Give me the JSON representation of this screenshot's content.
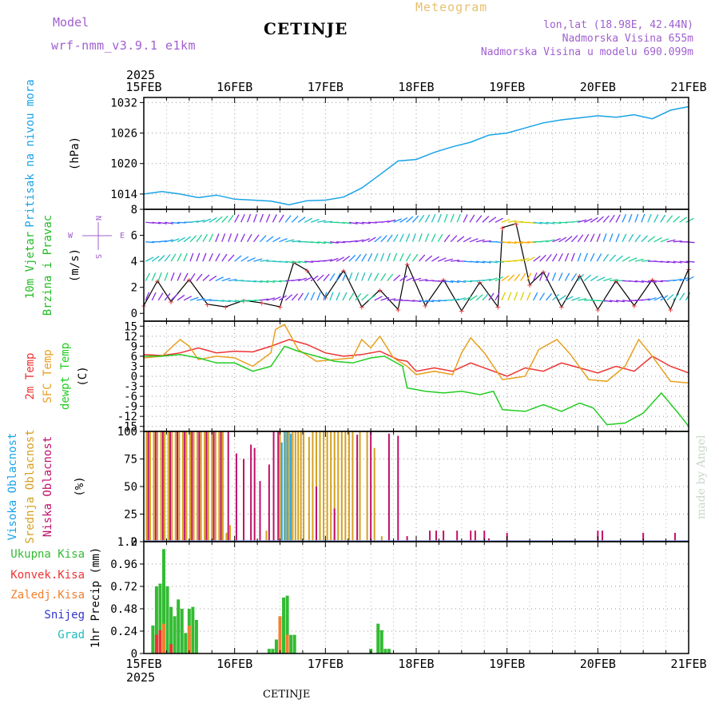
{
  "header": {
    "model_label": "Model",
    "model_name": "wrf-nmm_v3.9.1 e1km",
    "station": "CETINJE",
    "meteogram": "Meteogram",
    "lonlat": "lon,lat (18.98E, 42.44N)",
    "altitude": "Nadmorska Visina 655m",
    "model_altitude": "Nadmorska Visina u modelu 690.099m"
  },
  "footer": {
    "station": "CETINJE",
    "made_by": "made by Angel"
  },
  "colors": {
    "pressure": "#1aa3e6",
    "wind_label": "#22bb22",
    "temp2m": "#ee3333",
    "sfc_temp": "#e8a020",
    "dewpoint": "#22cc22",
    "cloud_high": "#1aa3e6",
    "cloud_mid": "#d4a020",
    "cloud_low": "#c0106a",
    "precip_total": "#33bb33",
    "precip_conv": "#ee3333",
    "precip_frozen": "#f08030",
    "snow": "#3333cc",
    "hail": "#22bbbb",
    "axis_label": "#000000",
    "model_text": "#a05fd0"
  },
  "chart_data": [
    {
      "type": "line",
      "title": "Pritisak na nivou mora",
      "ylabel": "(hPa)",
      "ylim": [
        1011,
        1033
      ],
      "yticks": [
        "1014",
        "1020",
        "1026",
        "1032"
      ],
      "x_top_ticks": [
        "15FEB",
        "16FEB",
        "17FEB",
        "18FEB",
        "19FEB",
        "20FEB",
        "21FEB"
      ],
      "x_top_year": "2025",
      "x_day_range": [
        15,
        21
      ],
      "grid": true,
      "series": [
        {
          "name": "Pritisak na nivou mora",
          "x": [
            15.0,
            15.2,
            15.4,
            15.6,
            15.8,
            16.0,
            16.2,
            16.4,
            16.6,
            16.8,
            17.0,
            17.2,
            17.4,
            17.6,
            17.8,
            18.0,
            18.2,
            18.4,
            18.6,
            18.8,
            19.0,
            19.2,
            19.4,
            19.6,
            19.8,
            20.0,
            20.2,
            20.4,
            20.6,
            20.8,
            21.0
          ],
          "values": [
            1014.0,
            1014.5,
            1014.0,
            1013.3,
            1013.8,
            1013.0,
            1012.8,
            1012.6,
            1011.9,
            1012.7,
            1012.8,
            1013.4,
            1015.2,
            1017.8,
            1020.5,
            1020.8,
            1022.2,
            1023.3,
            1024.2,
            1025.6,
            1026.0,
            1027.0,
            1028.0,
            1028.6,
            1029.0,
            1029.4,
            1029.1,
            1029.6,
            1028.8,
            1030.5,
            1031.2
          ]
        }
      ]
    },
    {
      "type": "line",
      "title": "10m Vjetar Brzina i Pravac",
      "ylabel": "(m/s)",
      "ylim": [
        -0.6,
        8
      ],
      "yticks": [
        "0",
        "2",
        "4",
        "6",
        "8"
      ],
      "compass": {
        "north": "N",
        "south": "S",
        "east": "E",
        "west": "W"
      },
      "grid": false,
      "series": [
        {
          "name": "wind speed",
          "x": [
            15.0,
            15.15,
            15.3,
            15.5,
            15.7,
            15.9,
            16.1,
            16.3,
            16.5,
            16.65,
            16.8,
            17.0,
            17.2,
            17.4,
            17.6,
            17.8,
            17.9,
            18.1,
            18.3,
            18.5,
            18.7,
            18.9,
            18.95,
            19.1,
            19.25,
            19.4,
            19.6,
            19.8,
            20.0,
            20.2,
            20.4,
            20.6,
            20.8,
            21.0
          ],
          "values": [
            0.6,
            2.5,
            0.9,
            2.6,
            0.7,
            0.5,
            1.0,
            0.8,
            0.5,
            3.9,
            3.3,
            1.2,
            3.3,
            0.5,
            1.8,
            0.3,
            3.8,
            0.6,
            2.6,
            0.2,
            2.4,
            0.5,
            6.6,
            6.9,
            2.2,
            3.2,
            0.5,
            2.9,
            0.3,
            2.5,
            0.6,
            2.6,
            0.3,
            3.4
          ]
        }
      ]
    },
    {
      "type": "line",
      "ylabel": "(C)",
      "ylim": [
        -16.5,
        16.5
      ],
      "yticks": [
        "15",
        "12",
        "9",
        "6",
        "3",
        "0",
        "-3",
        "-6",
        "-9",
        "-12",
        "-15"
      ],
      "grid": true,
      "series": [
        {
          "name": "2m Temp",
          "x": [
            15.0,
            15.2,
            15.4,
            15.6,
            15.8,
            16.0,
            16.2,
            16.4,
            16.6,
            16.8,
            17.0,
            17.2,
            17.4,
            17.6,
            17.8,
            17.9,
            18.0,
            18.2,
            18.4,
            18.6,
            18.8,
            19.0,
            19.2,
            19.4,
            19.6,
            19.8,
            20.0,
            20.2,
            20.4,
            20.6,
            20.8,
            21.0
          ],
          "values": [
            6.5,
            6.2,
            7.0,
            8.5,
            7.0,
            7.5,
            7.3,
            9.0,
            11.0,
            9.5,
            7.0,
            6.0,
            6.5,
            7.5,
            5.0,
            4.5,
            1.5,
            2.5,
            1.5,
            4.0,
            2.0,
            0.0,
            2.5,
            1.5,
            4.0,
            2.5,
            1.0,
            3.0,
            1.5,
            6.0,
            3.0,
            1.0
          ]
        },
        {
          "name": "SFC Temp",
          "x": [
            15.0,
            15.2,
            15.4,
            15.5,
            15.6,
            15.8,
            16.0,
            16.2,
            16.4,
            16.45,
            16.55,
            16.7,
            16.9,
            17.1,
            17.3,
            17.4,
            17.5,
            17.6,
            17.75,
            17.9,
            18.0,
            18.2,
            18.4,
            18.5,
            18.6,
            18.75,
            18.95,
            19.2,
            19.35,
            19.55,
            19.7,
            19.9,
            20.1,
            20.3,
            20.45,
            20.6,
            20.8,
            21.0
          ],
          "values": [
            5.5,
            6.0,
            11.0,
            9.0,
            5.0,
            6.0,
            5.5,
            3.0,
            7.0,
            14.0,
            15.5,
            8.0,
            4.5,
            5.0,
            5.5,
            11.0,
            8.5,
            12.0,
            5.5,
            3.0,
            0.5,
            1.5,
            0.5,
            7.0,
            11.5,
            7.0,
            -1.0,
            0.0,
            8.0,
            11.0,
            6.5,
            -1.0,
            -1.5,
            3.0,
            11.0,
            6.0,
            -1.5,
            -2.0
          ]
        },
        {
          "name": "dewpt Temp",
          "x": [
            15.0,
            15.2,
            15.4,
            15.6,
            15.8,
            16.0,
            16.2,
            16.4,
            16.55,
            16.7,
            16.9,
            17.1,
            17.3,
            17.5,
            17.65,
            17.85,
            17.9,
            18.1,
            18.3,
            18.5,
            18.7,
            18.85,
            18.95,
            19.2,
            19.4,
            19.6,
            19.8,
            19.95,
            20.1,
            20.3,
            20.5,
            20.7,
            20.9,
            21.0
          ],
          "values": [
            6.0,
            6.0,
            6.5,
            5.5,
            4.0,
            4.0,
            1.5,
            3.0,
            9.0,
            7.5,
            6.0,
            4.5,
            4.0,
            5.5,
            6.0,
            3.0,
            -3.5,
            -4.5,
            -5.0,
            -4.5,
            -5.5,
            -4.5,
            -10.0,
            -10.5,
            -8.5,
            -10.5,
            -8.0,
            -9.5,
            -14.5,
            -14.0,
            -11.0,
            -5.0,
            -11.5,
            -15.0
          ]
        }
      ]
    },
    {
      "type": "bar",
      "ylabel": "(%)",
      "ylim": [
        0,
        100
      ],
      "yticks": [
        "0",
        "25",
        "50",
        "75",
        "100"
      ],
      "grid": true,
      "series": [
        {
          "name": "Visoka Oblacnost",
          "x": [
            16.52,
            16.55,
            16.58,
            16.62
          ],
          "values": [
            90,
            100,
            100,
            98
          ]
        },
        {
          "name": "Srednja Oblacnost",
          "x": [
            15.03,
            15.07,
            15.11,
            15.15,
            15.19,
            15.23,
            15.27,
            15.31,
            15.35,
            15.39,
            15.43,
            15.47,
            15.51,
            15.55,
            15.59,
            15.63,
            15.67,
            15.71,
            15.75,
            15.79,
            15.83,
            15.87,
            15.91,
            15.95,
            16.35,
            16.5,
            16.56,
            16.6,
            16.64,
            16.67,
            16.7,
            16.73,
            16.76,
            16.82,
            16.86,
            16.9,
            16.94,
            16.98,
            17.02,
            17.06,
            17.1,
            17.14,
            17.18,
            17.22,
            17.26,
            17.3,
            17.38,
            17.46,
            17.54,
            17.62
          ],
          "values": [
            100,
            100,
            100,
            100,
            100,
            100,
            100,
            100,
            100,
            100,
            100,
            100,
            100,
            100,
            100,
            100,
            100,
            100,
            100,
            100,
            100,
            100,
            8,
            15,
            10,
            100,
            100,
            100,
            100,
            100,
            100,
            100,
            100,
            95,
            100,
            100,
            100,
            100,
            100,
            100,
            100,
            100,
            100,
            100,
            100,
            100,
            100,
            100,
            85,
            5
          ]
        },
        {
          "name": "Niska Oblacnost",
          "x": [
            15.05,
            15.13,
            15.21,
            15.29,
            15.37,
            15.45,
            15.53,
            15.61,
            15.69,
            15.77,
            15.85,
            15.93,
            16.02,
            16.1,
            16.18,
            16.22,
            16.28,
            16.38,
            16.43,
            16.48,
            16.9,
            17.1,
            17.35,
            17.5,
            17.7,
            17.8,
            17.9,
            18.15,
            18.22,
            18.3,
            18.45,
            18.6,
            18.65,
            18.75,
            18.8,
            19.0,
            20.0,
            20.05,
            20.5,
            20.85
          ],
          "values": [
            100,
            100,
            100,
            100,
            100,
            100,
            100,
            100,
            100,
            100,
            100,
            100,
            80,
            75,
            88,
            85,
            55,
            70,
            100,
            100,
            50,
            30,
            97,
            100,
            98,
            96,
            5,
            10,
            10,
            10,
            10,
            10,
            10,
            10,
            3,
            8,
            10,
            10,
            8,
            8
          ]
        }
      ]
    },
    {
      "type": "bar",
      "ylabel": "1hr Precip (mm)",
      "ylim": [
        0,
        1.2
      ],
      "yticks": [
        "0",
        "0.24",
        "0.48",
        "0.72",
        "0.96",
        "1.2"
      ],
      "x_bottom_ticks": [
        "15FEB",
        "16FEB",
        "17FEB",
        "18FEB",
        "19FEB",
        "20FEB",
        "21FEB"
      ],
      "x_bottom_year": "2025",
      "grid": true,
      "series": [
        {
          "name": "Ukupna Kisa",
          "x": [
            15.1,
            15.14,
            15.18,
            15.22,
            15.26,
            15.3,
            15.34,
            15.38,
            15.42,
            15.46,
            15.5,
            15.54,
            15.58,
            16.38,
            16.42,
            16.46,
            16.5,
            16.54,
            16.58,
            16.62,
            16.66,
            17.5,
            17.58,
            17.62,
            17.66,
            17.7
          ],
          "values": [
            0.3,
            0.72,
            0.75,
            1.12,
            0.72,
            0.5,
            0.4,
            0.58,
            0.48,
            0.22,
            0.48,
            0.5,
            0.36,
            0.05,
            0.05,
            0.15,
            0.38,
            0.6,
            0.62,
            0.2,
            0.2,
            0.05,
            0.32,
            0.25,
            0.05,
            0.05
          ]
        },
        {
          "name": "Konvek.Kisa",
          "x": [
            15.14,
            15.18,
            15.3,
            16.5
          ],
          "values": [
            0.2,
            0.25,
            0.1,
            0.1
          ]
        },
        {
          "name": "Zaledj.Kisa",
          "x": [
            15.22,
            15.5,
            16.5,
            16.58
          ],
          "values": [
            0.32,
            0.3,
            0.4,
            0.2
          ]
        },
        {
          "name": "Snijeg",
          "x": [],
          "values": []
        },
        {
          "name": "Grad",
          "x": [],
          "values": []
        }
      ]
    }
  ],
  "labels": {
    "p1": [
      "Pritisak na nivou mora"
    ],
    "p2": [
      "10m Vjetar",
      "Brzina i Pravac"
    ],
    "p3": [
      "2m Temp",
      "SFC Temp",
      "dewpt Temp"
    ],
    "p4": [
      "Visoka Oblacnost",
      "Srednja Oblacnost",
      "Niska Oblacnost"
    ],
    "p5": [
      "Ukupna Kisa",
      "Konvek.Kisa",
      "Zaledj.Kisa",
      "Snijeg",
      "Grad"
    ]
  }
}
